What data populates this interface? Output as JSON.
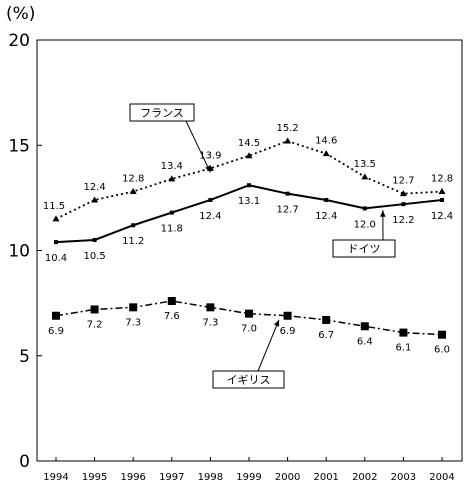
{
  "chart_data": {
    "type": "line",
    "ylabel": "(%)",
    "xlabel": "",
    "title": "",
    "ylim": [
      0,
      20
    ],
    "yticks": [
      0,
      5,
      10,
      15,
      20
    ],
    "categories": [
      "1994",
      "1995",
      "1996",
      "1997",
      "1998",
      "1999",
      "2000",
      "2001",
      "2002",
      "2003",
      "2004"
    ],
    "grid": false,
    "series": [
      {
        "name": "フランス",
        "style": "dotted",
        "marker": "triangle",
        "color": "#000000",
        "values": [
          11.5,
          12.4,
          12.8,
          13.4,
          13.9,
          14.5,
          15.2,
          14.6,
          13.5,
          12.7,
          12.8
        ],
        "labels": [
          "11.5",
          "12.4",
          "12.8",
          "13.4",
          "13.9",
          "14.5",
          "15.2",
          "14.6",
          "13.5",
          "12.7",
          "12.8"
        ]
      },
      {
        "name": "ドイツ",
        "style": "solid",
        "marker": "small-square",
        "color": "#000000",
        "values": [
          10.4,
          10.5,
          11.2,
          11.8,
          12.4,
          13.1,
          12.7,
          12.4,
          12.0,
          12.2,
          12.4
        ],
        "labels": [
          "10.4",
          "10.5",
          "11.2",
          "11.8",
          "12.4",
          "13.1",
          "12.7",
          "12.4",
          "12.0",
          "12.2",
          "12.4"
        ]
      },
      {
        "name": "イギリス",
        "style": "dash-dot",
        "marker": "square",
        "color": "#000000",
        "values": [
          6.9,
          7.2,
          7.3,
          7.6,
          7.3,
          7.0,
          6.9,
          6.7,
          6.4,
          6.1,
          6.0
        ],
        "labels": [
          "6.9",
          "7.2",
          "7.3",
          "7.6",
          "7.3",
          "7.0",
          "6.9",
          "6.7",
          "6.4",
          "6.1",
          "6.0"
        ]
      }
    ]
  }
}
